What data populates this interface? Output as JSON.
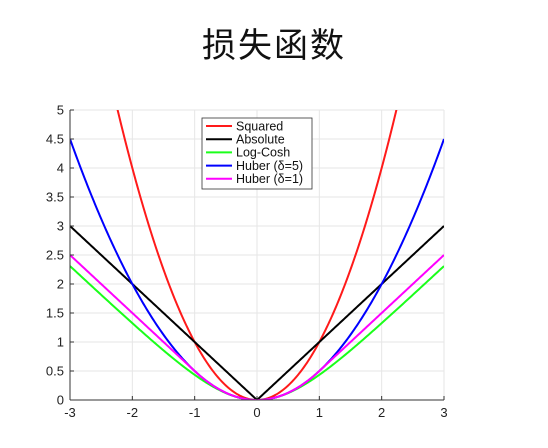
{
  "page": {
    "title": "损失函数"
  },
  "chart_data": {
    "type": "line",
    "title": "",
    "xlabel": "",
    "ylabel": "",
    "xlim": [
      -3,
      3
    ],
    "ylim": [
      0,
      5
    ],
    "xticks": [
      -3,
      -2,
      -1,
      0,
      1,
      2,
      3
    ],
    "yticks": [
      0,
      0.5,
      1,
      1.5,
      2,
      2.5,
      3,
      3.5,
      4,
      4.5,
      5
    ],
    "grid": true,
    "legend": "top-center",
    "series": [
      {
        "name": "Squared",
        "function": "x^2",
        "color": "#ff1a1a"
      },
      {
        "name": "Absolute",
        "function": "|x|",
        "color": "#000000"
      },
      {
        "name": "Log-Cosh",
        "function": "log(cosh(x))",
        "color": "#1aff1a"
      },
      {
        "name": "Huber (δ=5)",
        "function": "huber(x, 5)",
        "color": "#0000ff"
      },
      {
        "name": "Huber (δ=1)",
        "function": "huber(x, 1)",
        "color": "#ff00ff"
      }
    ]
  }
}
